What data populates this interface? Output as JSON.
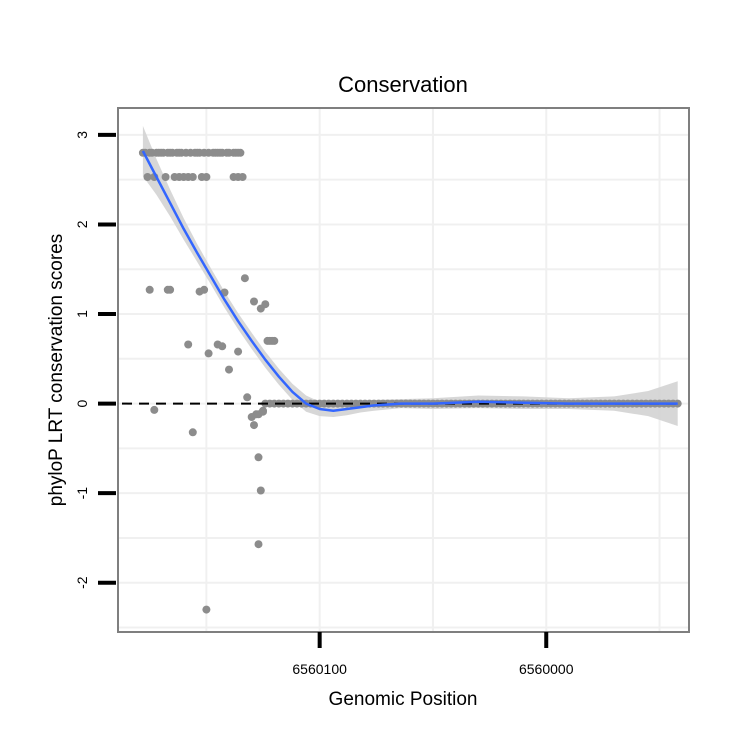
{
  "chart_data": {
    "type": "scatter",
    "title": "Conservation",
    "xlabel": "Genomic Position",
    "ylabel": "phyloP LRT conservation scores",
    "x_reversed": true,
    "xlim": [
      6560189,
      6559937
    ],
    "ylim": [
      -2.55,
      3.3
    ],
    "x_ticks": [
      {
        "value": 6560100,
        "label": "6560100"
      },
      {
        "value": 6560000,
        "label": "6560000"
      }
    ],
    "y_ticks": [
      {
        "value": -2,
        "label": "-2"
      },
      {
        "value": -1,
        "label": "-1"
      },
      {
        "value": 0,
        "label": "0"
      },
      {
        "value": 1,
        "label": "1"
      },
      {
        "value": 2,
        "label": "2"
      },
      {
        "value": 3,
        "label": "3"
      }
    ],
    "reference_line": {
      "y": 0,
      "style": "dashed",
      "color": "#000000"
    },
    "colors": {
      "points": "#8c8c8c",
      "smooth_line": "#3366ff",
      "confidence_band": "#d3d3d3",
      "grid": "#f0f0f0",
      "panel_border": "#7f7f7f"
    },
    "points": {
      "x": [
        6560178,
        6560174,
        6560177,
        6560175,
        6560172,
        6560171,
        6560170,
        6560169,
        6560167,
        6560166,
        6560165,
        6560163,
        6560162,
        6560161,
        6560159,
        6560157,
        6560155,
        6560154,
        6560153,
        6560151,
        6560149,
        6560147,
        6560146,
        6560145,
        6560144,
        6560143,
        6560141,
        6560140,
        6560138,
        6560137,
        6560136,
        6560135,
        6560176,
        6560173,
        6560168,
        6560164,
        6560162,
        6560160,
        6560158,
        6560156,
        6560152,
        6560150,
        6560138,
        6560136,
        6560134,
        6560175,
        6560167,
        6560166,
        6560151,
        6560142,
        6560133,
        6560129,
        6560126,
        6560124,
        6560123,
        6560122,
        6560121,
        6560120,
        6560158,
        6560149,
        6560145,
        6560143,
        6560140,
        6560136,
        6560173,
        6560156,
        6560132,
        6560128,
        6560127,
        6560125,
        6560150,
        6560126,
        6560127,
        6560129,
        6560130,
        6560127,
        6560125,
        6560153
      ],
      "y": [
        2.8,
        2.8,
        2.8,
        2.8,
        2.8,
        2.8,
        2.8,
        2.8,
        2.8,
        2.8,
        2.8,
        2.8,
        2.8,
        2.8,
        2.8,
        2.8,
        2.8,
        2.8,
        2.8,
        2.8,
        2.8,
        2.8,
        2.8,
        2.8,
        2.8,
        2.8,
        2.8,
        2.8,
        2.8,
        2.8,
        2.8,
        2.8,
        2.53,
        2.53,
        2.53,
        2.53,
        2.53,
        2.53,
        2.53,
        2.53,
        2.53,
        2.53,
        2.53,
        2.53,
        2.53,
        1.27,
        1.27,
        1.27,
        1.27,
        1.24,
        1.4,
        1.14,
        1.06,
        1.11,
        0.7,
        0.7,
        0.7,
        0.7,
        0.66,
        0.56,
        0.66,
        0.64,
        0.38,
        0.58,
        -0.07,
        -0.32,
        0.07,
        -0.12,
        -0.6,
        -0.08,
        -2.3,
        -0.97,
        -1.57,
        -0.24,
        -0.15,
        -0.12,
        -0.09,
        1.25
      ]
    },
    "flat_points": {
      "x_from": 6560124,
      "x_to": 6559942,
      "y": 0.0,
      "count": 92
    },
    "smooth": {
      "x": [
        6560178,
        6560172,
        6560166,
        6560160,
        6560154,
        6560148,
        6560142,
        6560136,
        6560130,
        6560124,
        6560118,
        6560112,
        6560106,
        6560100,
        6560094,
        6560088,
        6560082,
        6560076,
        6560064,
        6560050,
        6560030,
        6560010,
        6559990,
        6559970,
        6559955,
        6559942
      ],
      "y": [
        2.82,
        2.53,
        2.24,
        1.95,
        1.68,
        1.42,
        1.16,
        0.92,
        0.7,
        0.49,
        0.3,
        0.13,
        0.0,
        -0.06,
        -0.08,
        -0.06,
        -0.04,
        -0.02,
        0.0,
        0.0,
        0.02,
        0.01,
        0.0,
        0.0,
        0.0,
        0.0
      ],
      "se": [
        0.28,
        0.2,
        0.15,
        0.12,
        0.1,
        0.09,
        0.09,
        0.09,
        0.09,
        0.09,
        0.09,
        0.09,
        0.09,
        0.08,
        0.07,
        0.07,
        0.06,
        0.06,
        0.05,
        0.06,
        0.07,
        0.07,
        0.06,
        0.08,
        0.14,
        0.25
      ]
    }
  }
}
